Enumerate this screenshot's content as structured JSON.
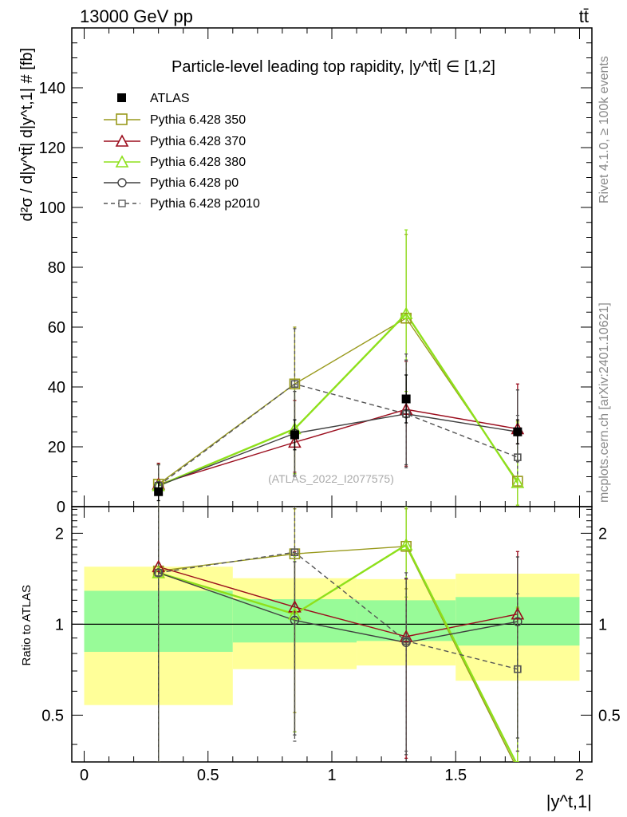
{
  "header": {
    "left": "13000 GeV pp",
    "right": "tt̄"
  },
  "side_labels": {
    "rivet": "Rivet 4.1.0, ≥ 100k events",
    "mcplots": "mcplots.cern.ch [arXiv:2401.10621]"
  },
  "chart_data": {
    "type": "line",
    "title": "Particle-level leading top rapidity, |y^tt̄| ∈ [1,2]",
    "watermark": "(ATLAS_2022_I2077575)",
    "ylabel": "d²σ / d|y^tt̄| d|y^t,1| # [fb]",
    "xlabel": "|y^t,1|",
    "xlim": [
      -0.05,
      2.05
    ],
    "ylim": [
      0,
      160
    ],
    "xticks": [
      "0",
      "0.5",
      "1",
      "1.5",
      "2"
    ],
    "yticks": [
      "0",
      "20",
      "40",
      "60",
      "80",
      "100",
      "120",
      "140"
    ],
    "x": [
      0.3,
      0.85,
      1.3,
      1.75
    ],
    "data": {
      "name": "ATLAS",
      "values": [
        5,
        24,
        36,
        25
      ],
      "errors": [
        3,
        5,
        8,
        4
      ]
    },
    "series": [
      {
        "name": "Pythia 6.428 350",
        "color": "#999a1d",
        "marker": "square-open",
        "dashed": false,
        "values": [
          7.5,
          41,
          63,
          8.5
        ],
        "err_low": [
          7.5,
          30,
          27,
          8
        ],
        "err_high": [
          7,
          19,
          28,
          20
        ]
      },
      {
        "name": "Pythia 6.428 370",
        "color": "#9b0d1d",
        "marker": "triangle-open",
        "dashed": false,
        "values": [
          7.5,
          21.5,
          32.5,
          26
        ],
        "err_low": [
          7.5,
          10,
          19,
          5
        ],
        "err_high": [
          7,
          14,
          16,
          15
        ]
      },
      {
        "name": "Pythia 6.428 380",
        "color": "#8ee01b",
        "marker": "triangle-open",
        "dashed": false,
        "values": [
          7,
          26,
          64.5,
          8
        ],
        "err_low": [
          7,
          15,
          26,
          7.5
        ],
        "err_high": [
          7,
          14,
          28,
          20
        ]
      },
      {
        "name": "Pythia 6.428 p0",
        "color": "#404040",
        "marker": "circle-open",
        "dashed": false,
        "values": [
          7,
          24.5,
          31,
          25
        ],
        "err_low": [
          7,
          14,
          17,
          10
        ],
        "err_high": [
          7,
          14,
          18,
          14
        ]
      },
      {
        "name": "Pythia 6.428 p2010",
        "color": "#555555",
        "marker": "square-open",
        "dashed": true,
        "values": [
          7,
          41,
          31,
          16.5
        ],
        "err_low": [
          7,
          31,
          18,
          6.5
        ],
        "err_high": [
          7,
          18.5,
          20,
          14
        ]
      }
    ],
    "ratio": {
      "ylabel": "Ratio to ATLAS",
      "ylim": [
        0.35,
        2.45
      ],
      "yticks": [
        "0.5",
        "1",
        "2"
      ],
      "bands": {
        "x_edges": [
          0,
          0.6,
          1.1,
          1.5,
          2.0
        ],
        "yellow_low": [
          0.54,
          0.71,
          0.73,
          0.65
        ],
        "yellow_high": [
          1.55,
          1.42,
          1.41,
          1.47
        ],
        "green_low": [
          0.81,
          0.87,
          0.88,
          0.85
        ],
        "green_high": [
          1.29,
          1.21,
          1.2,
          1.23
        ]
      },
      "series": [
        {
          "name": "Pythia 6.428 350",
          "values": [
            1.5,
            1.71,
            1.81,
            0.33
          ],
          "err_low": [
            1.2,
            1.2,
            0.5,
            0.3
          ],
          "err_high": [
            1.0,
            0.7,
            0.6,
            0.8
          ]
        },
        {
          "name": "Pythia 6.428 370",
          "values": [
            1.55,
            1.14,
            0.91,
            1.08
          ],
          "err_low": [
            1.2,
            0.7,
            0.55,
            0.7
          ],
          "err_high": [
            1.0,
            0.6,
            0.5,
            0.66
          ]
        },
        {
          "name": "Pythia 6.428 380",
          "values": [
            1.48,
            1.08,
            1.83,
            0.34
          ],
          "err_low": [
            1.2,
            0.64,
            0.6,
            0.3
          ],
          "err_high": [
            1.0,
            0.6,
            0.7,
            0.8
          ]
        },
        {
          "name": "Pythia 6.428 p0",
          "values": [
            1.48,
            1.03,
            0.87,
            1.02
          ],
          "err_low": [
            1.2,
            0.6,
            0.5,
            0.6
          ],
          "err_high": [
            1.0,
            0.58,
            0.55,
            0.65
          ]
        },
        {
          "name": "Pythia 6.428 p2010",
          "values": [
            1.48,
            1.73,
            0.88,
            0.71
          ],
          "err_low": [
            1.2,
            1.32,
            0.5,
            0.33
          ],
          "err_high": [
            1.0,
            0.9,
            0.6,
            0.55
          ]
        }
      ]
    }
  }
}
